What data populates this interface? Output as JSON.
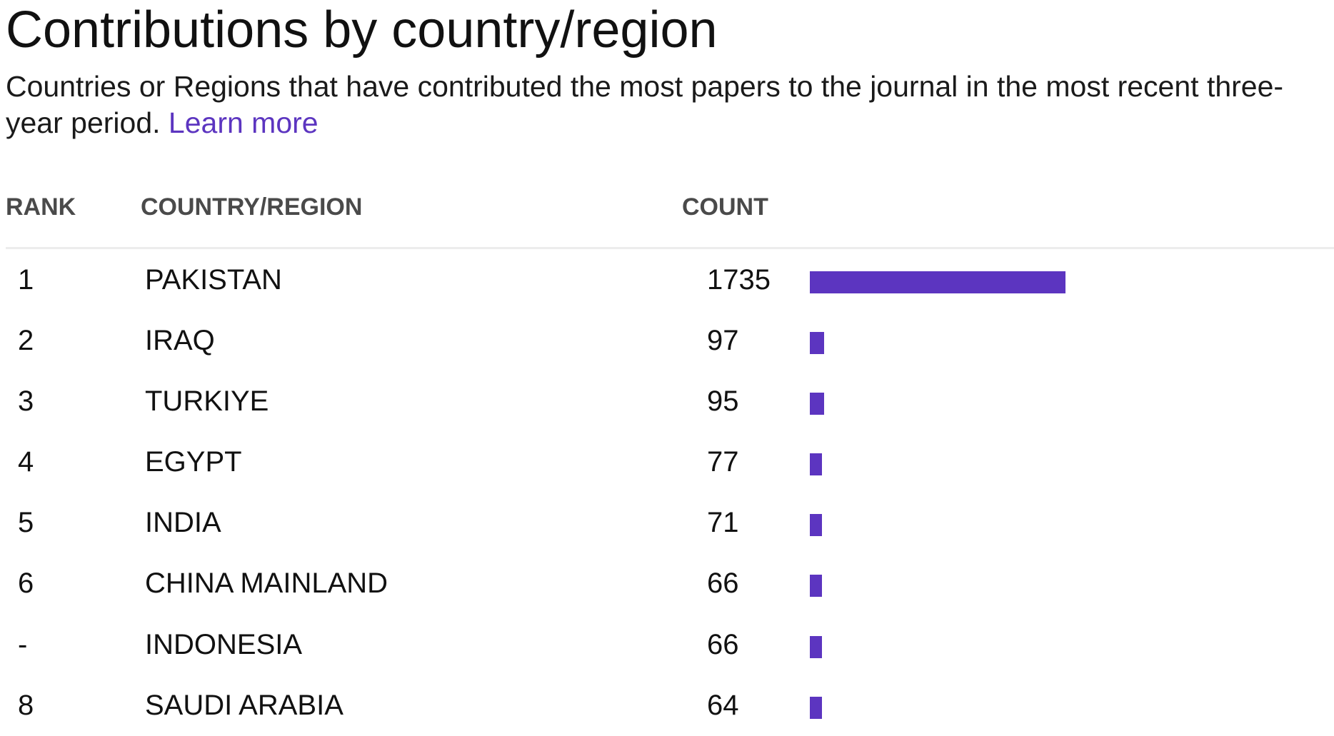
{
  "header": {
    "title": "Contributions by country/region",
    "description": "Countries or Regions that have contributed the most papers to the journal in the most recent three-year period.",
    "learn_more": "Learn more"
  },
  "table": {
    "columns": {
      "rank": "RANK",
      "country": "COUNTRY/REGION",
      "count": "COUNT"
    },
    "rows": [
      {
        "rank": "1",
        "country": "PAKISTAN",
        "count": "1735"
      },
      {
        "rank": "2",
        "country": "IRAQ",
        "count": "97"
      },
      {
        "rank": "3",
        "country": "TURKIYE",
        "count": "95"
      },
      {
        "rank": "4",
        "country": "EGYPT",
        "count": "77"
      },
      {
        "rank": "5",
        "country": "INDIA",
        "count": "71"
      },
      {
        "rank": "6",
        "country": "CHINA MAINLAND",
        "count": "66"
      },
      {
        "rank": "-",
        "country": "INDONESIA",
        "count": "66"
      },
      {
        "rank": "8",
        "country": "SAUDI ARABIA",
        "count": "64"
      }
    ]
  },
  "colors": {
    "accent": "#5c35c0",
    "header_text": "#4a4a4a",
    "divider": "#ececec"
  }
}
